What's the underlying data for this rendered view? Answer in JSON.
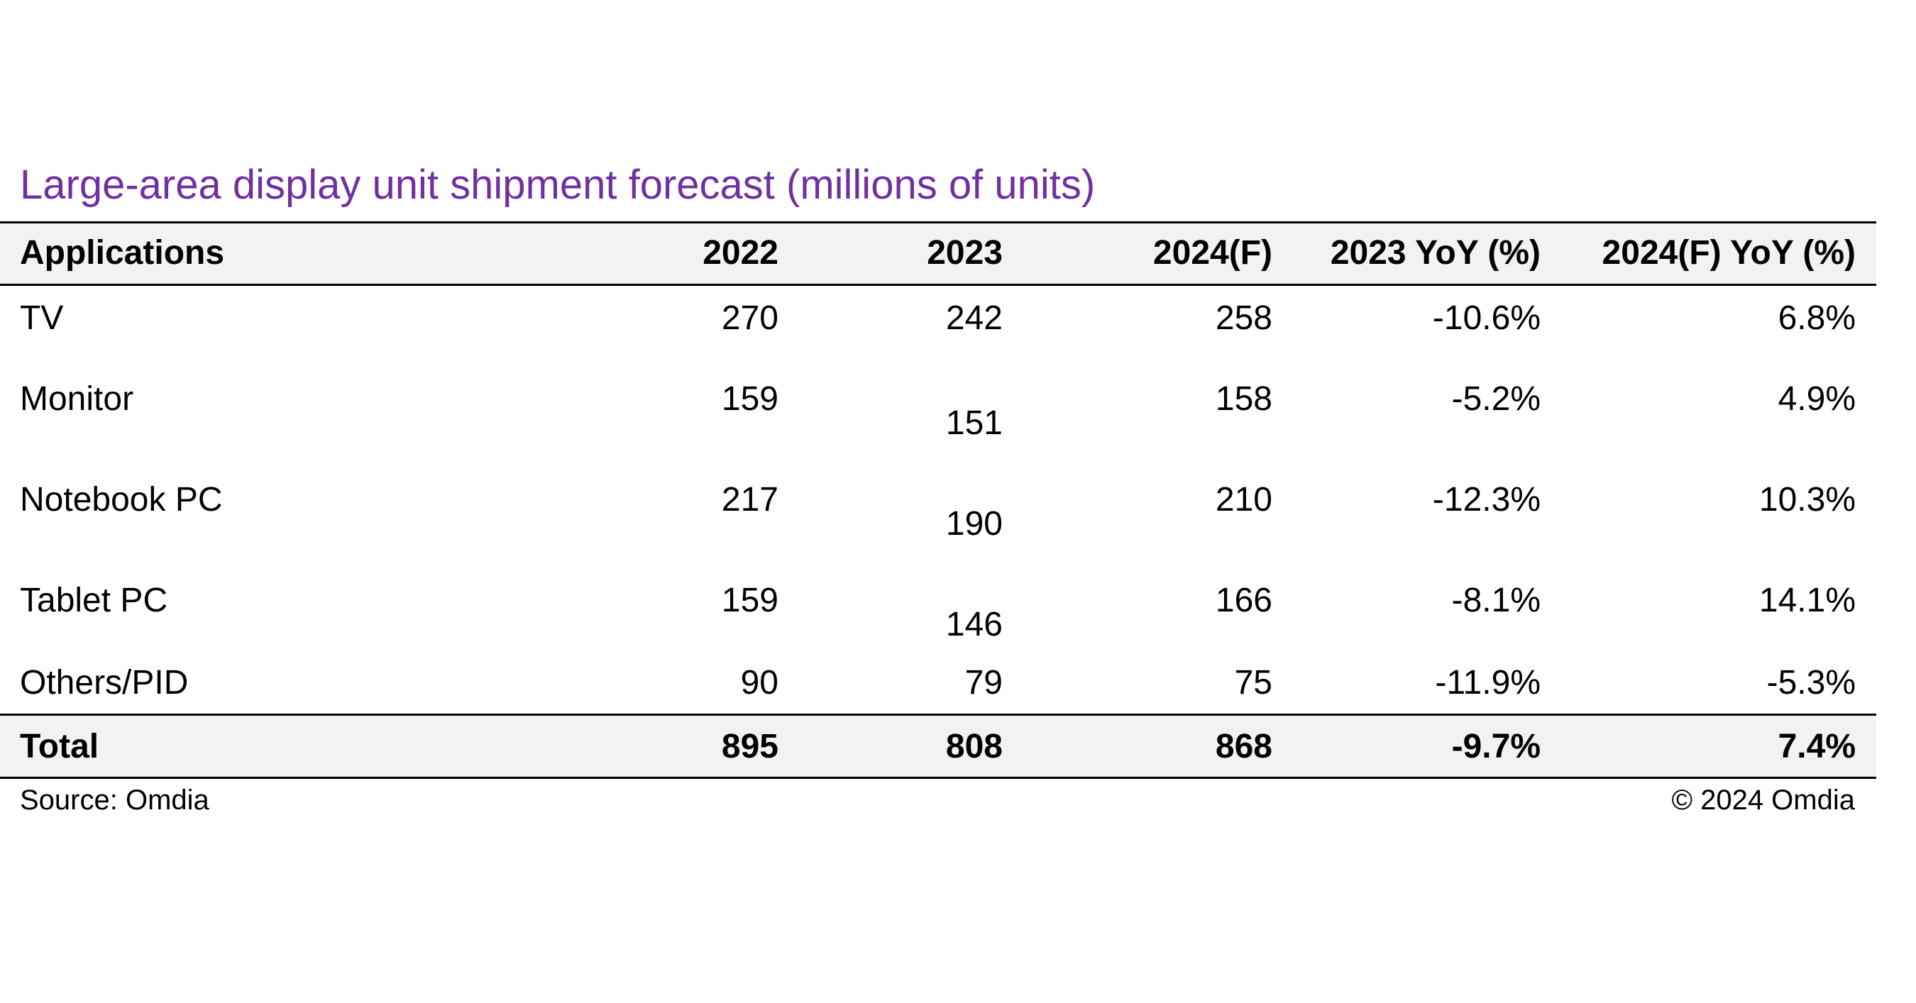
{
  "title": "Large-area display unit shipment forecast (millions of units)",
  "table": {
    "header": [
      "Applications",
      "2022",
      "2023",
      "2024(F)",
      "2023 YoY (%)",
      "2024(F) YoY (%)"
    ],
    "rows": [
      [
        "TV",
        "270",
        "242",
        "258",
        "-10.6%",
        "6.8%"
      ],
      [
        "Monitor",
        "159",
        "151",
        "158",
        "-5.2%",
        "4.9%"
      ],
      [
        "Notebook PC",
        "217",
        "190",
        "210",
        "-12.3%",
        "10.3%"
      ],
      [
        "Tablet PC",
        "159",
        "146",
        "166",
        "-8.1%",
        "14.1%"
      ],
      [
        "Others/PID",
        "90",
        "79",
        "75",
        "-11.9%",
        "-5.3%"
      ]
    ],
    "total": [
      "Total",
      "895",
      "808",
      "868",
      "-9.7%",
      "7.4%"
    ]
  },
  "footer": {
    "source": "Source: Omdia",
    "copyright": "© 2024 Omdia"
  }
}
